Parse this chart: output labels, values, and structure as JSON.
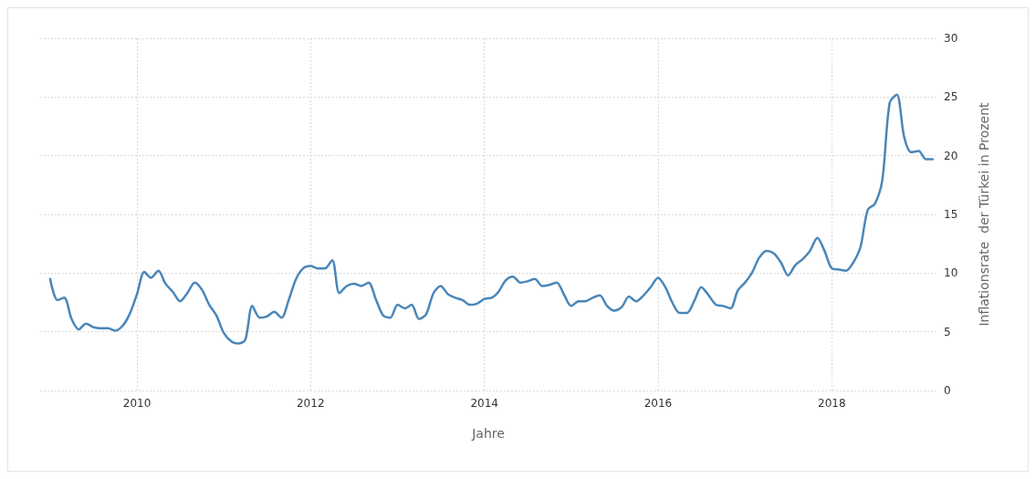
{
  "chart_data": {
    "type": "line",
    "xlabel": "Jahre",
    "ylabel": "Inflationsrate  der Türkei in Prozent",
    "x": [
      "2009-01",
      "2009-02",
      "2009-03",
      "2009-04",
      "2009-05",
      "2009-06",
      "2009-07",
      "2009-08",
      "2009-09",
      "2009-10",
      "2009-11",
      "2009-12",
      "2010-01",
      "2010-02",
      "2010-03",
      "2010-04",
      "2010-05",
      "2010-06",
      "2010-07",
      "2010-08",
      "2010-09",
      "2010-10",
      "2010-11",
      "2010-12",
      "2011-01",
      "2011-02",
      "2011-03",
      "2011-04",
      "2011-05",
      "2011-06",
      "2011-07",
      "2011-08",
      "2011-09",
      "2011-10",
      "2011-11",
      "2011-12",
      "2012-01",
      "2012-02",
      "2012-03",
      "2012-04",
      "2012-05",
      "2012-06",
      "2012-07",
      "2012-08",
      "2012-09",
      "2012-10",
      "2012-11",
      "2012-12",
      "2013-01",
      "2013-02",
      "2013-03",
      "2013-04",
      "2013-05",
      "2013-06",
      "2013-07",
      "2013-08",
      "2013-09",
      "2013-10",
      "2013-11",
      "2013-12",
      "2014-01",
      "2014-02",
      "2014-03",
      "2014-04",
      "2014-05",
      "2014-06",
      "2014-07",
      "2014-08",
      "2014-09",
      "2014-10",
      "2014-11",
      "2014-12",
      "2015-01",
      "2015-02",
      "2015-03",
      "2015-04",
      "2015-05",
      "2015-06",
      "2015-07",
      "2015-08",
      "2015-09",
      "2015-10",
      "2015-11",
      "2015-12",
      "2016-01",
      "2016-02",
      "2016-03",
      "2016-04",
      "2016-05",
      "2016-06",
      "2016-07",
      "2016-08",
      "2016-09",
      "2016-10",
      "2016-11",
      "2016-12",
      "2017-01",
      "2017-02",
      "2017-03",
      "2017-04",
      "2017-05",
      "2017-06",
      "2017-07",
      "2017-08",
      "2017-09",
      "2017-10",
      "2017-11",
      "2017-12",
      "2018-01",
      "2018-02",
      "2018-03",
      "2018-04",
      "2018-05",
      "2018-06",
      "2018-07",
      "2018-08",
      "2018-09",
      "2018-10",
      "2018-11",
      "2018-12",
      "2019-01",
      "2019-02",
      "2019-03"
    ],
    "series": [
      {
        "color": "#4a86b8",
        "values": [
          9.5,
          7.7,
          7.9,
          6.1,
          5.2,
          5.7,
          5.4,
          5.3,
          5.3,
          5.1,
          5.5,
          6.5,
          8.2,
          10.1,
          9.6,
          10.2,
          9.1,
          8.4,
          7.6,
          8.3,
          9.2,
          8.6,
          7.3,
          6.4,
          4.9,
          4.2,
          4.0,
          4.3,
          7.2,
          6.2,
          6.3,
          6.7,
          6.2,
          7.7,
          9.5,
          10.4,
          10.6,
          10.4,
          10.4,
          11.1,
          8.3,
          8.9,
          9.1,
          8.9,
          9.2,
          7.8,
          6.4,
          6.2,
          7.3,
          7.0,
          7.3,
          6.1,
          6.5,
          8.3,
          8.9,
          8.2,
          7.9,
          7.7,
          7.3,
          7.4,
          7.8,
          7.9,
          8.4,
          9.4,
          9.7,
          9.2,
          9.3,
          9.5,
          8.9,
          9.0,
          9.2,
          8.2,
          7.2,
          7.6,
          7.6,
          7.9,
          8.1,
          7.2,
          6.8,
          7.1,
          8.0,
          7.6,
          8.1,
          8.8,
          9.6,
          8.8,
          7.5,
          6.6,
          6.6,
          7.6,
          8.8,
          8.1,
          7.3,
          7.2,
          7.0,
          8.5,
          9.2,
          10.1,
          11.3,
          11.9,
          11.7,
          10.9,
          9.8,
          10.7,
          11.2,
          11.9,
          13.0,
          11.9,
          10.4,
          10.3,
          10.2,
          10.9,
          12.2,
          15.4,
          15.9,
          17.9,
          24.5,
          25.2,
          21.6,
          20.3,
          20.4,
          19.7,
          19.7
        ]
      }
    ],
    "xlim": [
      "2008-11-20",
      "2019-03-17"
    ],
    "xticks": [
      "2010",
      "2012",
      "2014",
      "2016",
      "2018"
    ],
    "ylim": [
      0,
      30
    ],
    "yticks": [
      0,
      5,
      10,
      15,
      20,
      25,
      30
    ],
    "grid": true,
    "marker": "none",
    "line_style": "solid"
  }
}
